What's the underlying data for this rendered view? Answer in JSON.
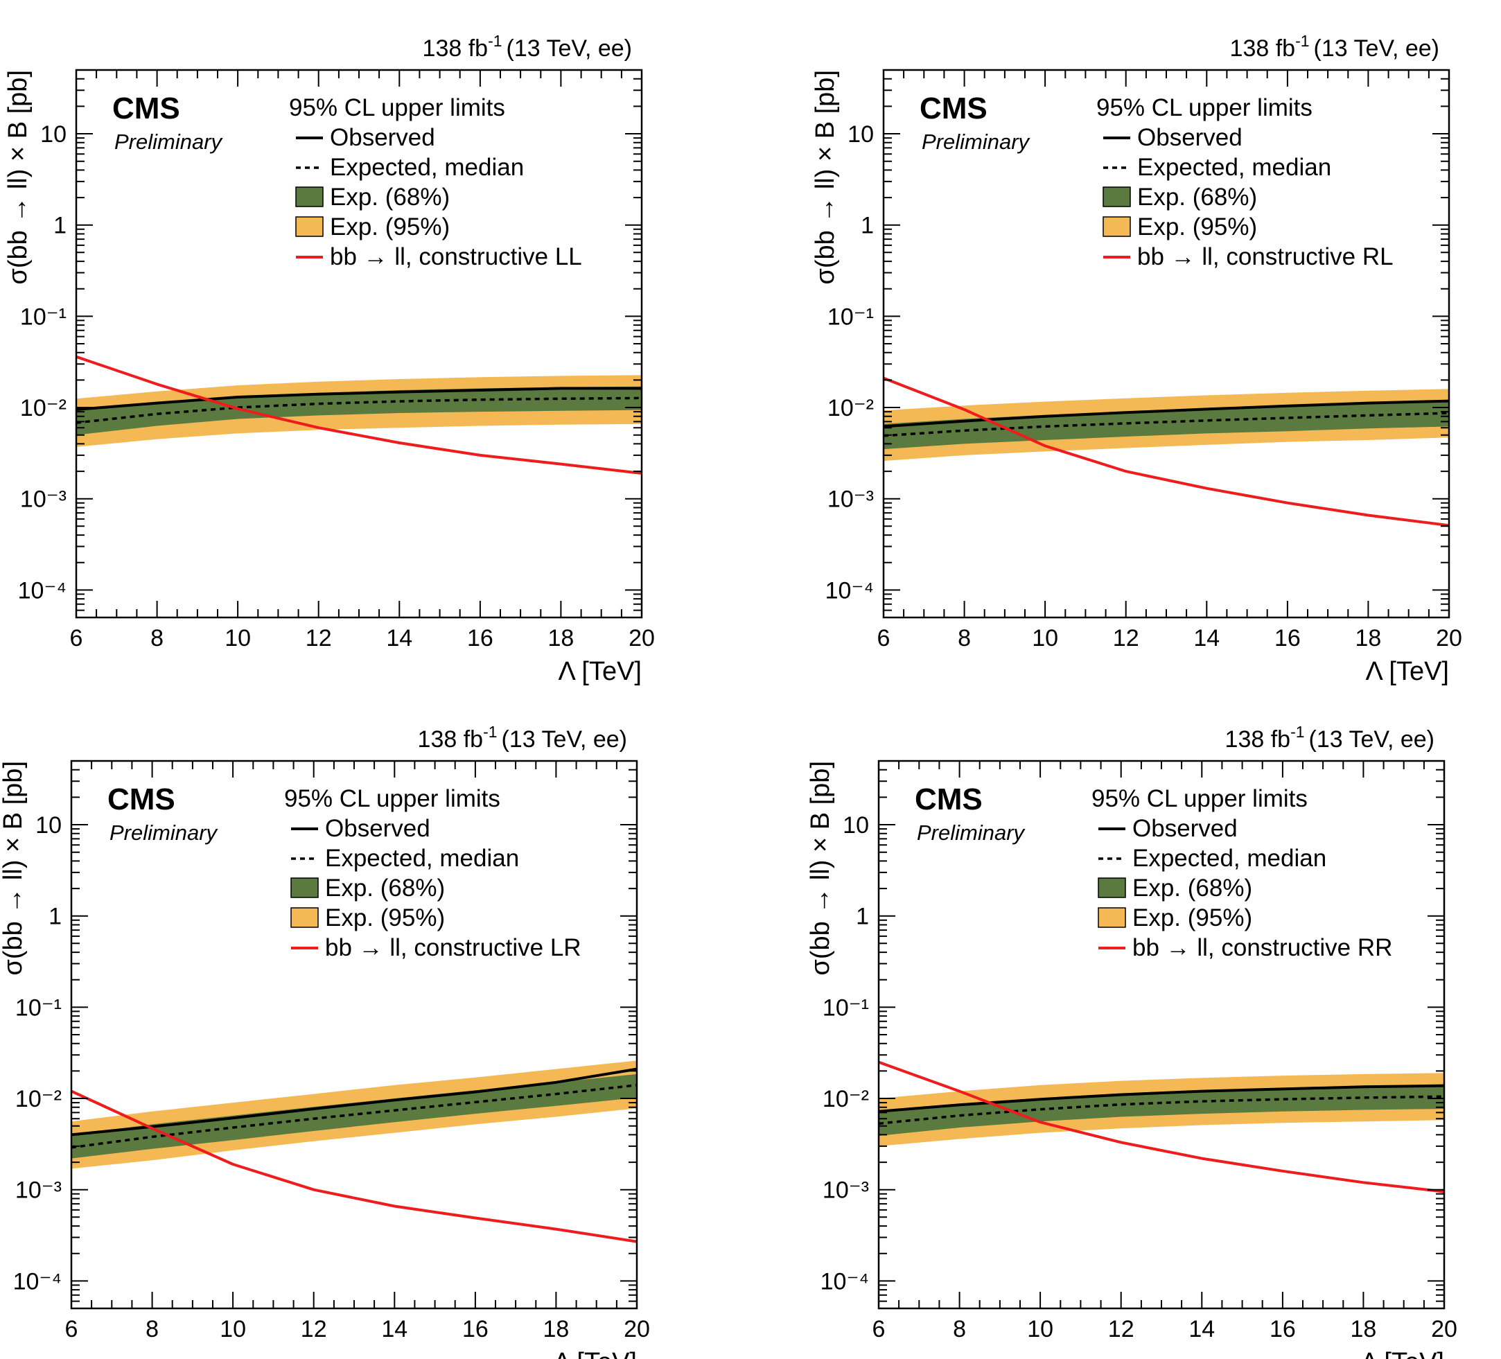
{
  "colors": {
    "band68": "#5b7a3f",
    "band95": "#f4b955",
    "theory": "#ee1c1c",
    "observed": "#000000",
    "frame": "#000000"
  },
  "chart_data": [
    {
      "type": "line",
      "panel": "top-left",
      "lumi_label": "138 fb",
      "lumi_sup": "-1",
      "lumi_suffix": "(13 TeV, ee)",
      "cms_label": "CMS",
      "preliminary_label": "Preliminary",
      "legend_title": "95% CL upper limits",
      "legend": [
        "Observed",
        "Expected, median",
        "Exp. (68%)",
        "Exp. (95%)",
        "bb → ll, constructive LL"
      ],
      "xlabel": "Λ [TeV]",
      "ylabel": "σ(bb → ll) × B [pb]",
      "xlim": [
        6,
        20
      ],
      "ylim": [
        5e-05,
        50
      ],
      "yscale": "log",
      "xticks": [
        "6",
        "8",
        "10",
        "12",
        "14",
        "16",
        "18",
        "20"
      ],
      "yticks": [
        "10⁻⁴",
        "10⁻³",
        "10⁻²",
        "10⁻¹",
        "1",
        "10"
      ],
      "x": [
        6,
        8,
        10,
        12,
        14,
        16,
        18,
        20
      ],
      "observed": [
        0.0095,
        0.0112,
        0.013,
        0.014,
        0.0148,
        0.0155,
        0.0162,
        0.0162
      ],
      "expected": [
        0.0068,
        0.0085,
        0.01,
        0.011,
        0.0117,
        0.0122,
        0.0125,
        0.0127
      ],
      "band68": [
        [
          0.005,
          0.0092
        ],
        [
          0.0063,
          0.0112
        ],
        [
          0.0075,
          0.0133
        ],
        [
          0.0082,
          0.0145
        ],
        [
          0.0087,
          0.0155
        ],
        [
          0.009,
          0.0162
        ],
        [
          0.0092,
          0.0167
        ],
        [
          0.0094,
          0.017
        ]
      ],
      "band95": [
        [
          0.0037,
          0.0125
        ],
        [
          0.0045,
          0.015
        ],
        [
          0.0052,
          0.0175
        ],
        [
          0.0057,
          0.0192
        ],
        [
          0.006,
          0.0205
        ],
        [
          0.0063,
          0.0215
        ],
        [
          0.0065,
          0.0222
        ],
        [
          0.0066,
          0.0227
        ]
      ],
      "theory": [
        0.036,
        0.018,
        0.0097,
        0.006,
        0.0041,
        0.003,
        0.0024,
        0.0019
      ]
    },
    {
      "type": "line",
      "panel": "top-right",
      "lumi_label": "138 fb",
      "lumi_sup": "-1",
      "lumi_suffix": "(13 TeV, ee)",
      "cms_label": "CMS",
      "preliminary_label": "Preliminary",
      "legend_title": "95% CL upper limits",
      "legend": [
        "Observed",
        "Expected, median",
        "Exp. (68%)",
        "Exp. (95%)",
        "bb → ll, constructive RL"
      ],
      "xlabel": "Λ [TeV]",
      "ylabel": "σ(bb → ll) × B [pb]",
      "xlim": [
        6,
        20
      ],
      "ylim": [
        5e-05,
        50
      ],
      "yscale": "log",
      "xticks": [
        "6",
        "8",
        "10",
        "12",
        "14",
        "16",
        "18",
        "20"
      ],
      "yticks": [
        "10⁻⁴",
        "10⁻³",
        "10⁻²",
        "10⁻¹",
        "1",
        "10"
      ],
      "x": [
        6,
        8,
        10,
        12,
        14,
        16,
        18,
        20
      ],
      "observed": [
        0.0062,
        0.0071,
        0.008,
        0.0088,
        0.0096,
        0.0104,
        0.0112,
        0.0118
      ],
      "expected": [
        0.0049,
        0.0056,
        0.0062,
        0.0067,
        0.0072,
        0.0077,
        0.0082,
        0.0087
      ],
      "band68": [
        [
          0.0035,
          0.0066
        ],
        [
          0.004,
          0.0075
        ],
        [
          0.0044,
          0.0083
        ],
        [
          0.0048,
          0.009
        ],
        [
          0.0052,
          0.0097
        ],
        [
          0.0055,
          0.0104
        ],
        [
          0.0059,
          0.011
        ],
        [
          0.0062,
          0.0116
        ]
      ],
      "band95": [
        [
          0.0026,
          0.0093
        ],
        [
          0.003,
          0.0105
        ],
        [
          0.0033,
          0.0116
        ],
        [
          0.0036,
          0.0126
        ],
        [
          0.0039,
          0.0136
        ],
        [
          0.0042,
          0.0145
        ],
        [
          0.0044,
          0.0153
        ],
        [
          0.0047,
          0.016
        ]
      ],
      "theory": [
        0.021,
        0.0095,
        0.0038,
        0.002,
        0.0013,
        0.0009,
        0.00066,
        0.00051
      ]
    },
    {
      "type": "line",
      "panel": "bottom-left",
      "lumi_label": "138 fb",
      "lumi_sup": "-1",
      "lumi_suffix": "(13 TeV, ee)",
      "cms_label": "CMS",
      "preliminary_label": "Preliminary",
      "legend_title": "95% CL upper limits",
      "legend": [
        "Observed",
        "Expected, median",
        "Exp. (68%)",
        "Exp. (95%)",
        "bb → ll, constructive LR"
      ],
      "xlabel": "Λ [TeV]",
      "ylabel": "σ(bb → ll) × B [pb]",
      "xlim": [
        6,
        20
      ],
      "ylim": [
        5e-05,
        50
      ],
      "yscale": "log",
      "xticks": [
        "6",
        "8",
        "10",
        "12",
        "14",
        "16",
        "18",
        "20"
      ],
      "yticks": [
        "10⁻⁴",
        "10⁻³",
        "10⁻²",
        "10⁻¹",
        "1",
        "10"
      ],
      "x": [
        6,
        8,
        10,
        12,
        14,
        16,
        18,
        20
      ],
      "observed": [
        0.004,
        0.0049,
        0.0061,
        0.0077,
        0.0096,
        0.0118,
        0.015,
        0.021
      ],
      "expected": [
        0.0029,
        0.0038,
        0.0048,
        0.006,
        0.0074,
        0.0091,
        0.0112,
        0.014
      ],
      "band68": [
        [
          0.0022,
          0.004
        ],
        [
          0.0028,
          0.0052
        ],
        [
          0.0035,
          0.0065
        ],
        [
          0.0044,
          0.0081
        ],
        [
          0.0055,
          0.01
        ],
        [
          0.0068,
          0.0123
        ],
        [
          0.0083,
          0.015
        ],
        [
          0.0102,
          0.0185
        ]
      ],
      "band95": [
        [
          0.0017,
          0.0056
        ],
        [
          0.0021,
          0.0072
        ],
        [
          0.0027,
          0.009
        ],
        [
          0.0034,
          0.0112
        ],
        [
          0.0042,
          0.014
        ],
        [
          0.0052,
          0.017
        ],
        [
          0.0063,
          0.021
        ],
        [
          0.0078,
          0.026
        ]
      ],
      "theory": [
        0.012,
        0.0047,
        0.0019,
        0.001,
        0.00066,
        0.00049,
        0.00037,
        0.00027
      ]
    },
    {
      "type": "line",
      "panel": "bottom-right",
      "lumi_label": "138 fb",
      "lumi_sup": "-1",
      "lumi_suffix": "(13 TeV, ee)",
      "cms_label": "CMS",
      "preliminary_label": "Preliminary",
      "legend_title": "95% CL upper limits",
      "legend": [
        "Observed",
        "Expected, median",
        "Exp. (68%)",
        "Exp. (95%)",
        "bb → ll, constructive RR"
      ],
      "xlabel": "Λ [TeV]",
      "ylabel": "σ(bb → ll) × B [pb]",
      "xlim": [
        6,
        20
      ],
      "ylim": [
        5e-05,
        50
      ],
      "yscale": "log",
      "xticks": [
        "6",
        "8",
        "10",
        "12",
        "14",
        "16",
        "18",
        "20"
      ],
      "yticks": [
        "10⁻⁴",
        "10⁻³",
        "10⁻²",
        "10⁻¹",
        "1",
        "10"
      ],
      "x": [
        6,
        8,
        10,
        12,
        14,
        16,
        18,
        20
      ],
      "observed": [
        0.0072,
        0.0085,
        0.0098,
        0.011,
        0.012,
        0.0127,
        0.0134,
        0.0138
      ],
      "expected": [
        0.0053,
        0.0065,
        0.0076,
        0.0086,
        0.0093,
        0.0098,
        0.0102,
        0.0105
      ],
      "band68": [
        [
          0.0039,
          0.0071
        ],
        [
          0.0048,
          0.0087
        ],
        [
          0.0056,
          0.0101
        ],
        [
          0.0063,
          0.0114
        ],
        [
          0.0068,
          0.0123
        ],
        [
          0.0072,
          0.013
        ],
        [
          0.0075,
          0.0135
        ],
        [
          0.0077,
          0.0139
        ]
      ],
      "band95": [
        [
          0.003,
          0.01
        ],
        [
          0.0036,
          0.012
        ],
        [
          0.0042,
          0.014
        ],
        [
          0.0047,
          0.0156
        ],
        [
          0.0051,
          0.0168
        ],
        [
          0.0054,
          0.0178
        ],
        [
          0.0056,
          0.0185
        ],
        [
          0.0058,
          0.019
        ]
      ],
      "theory": [
        0.025,
        0.012,
        0.0055,
        0.0033,
        0.0022,
        0.0016,
        0.0012,
        0.00095
      ]
    }
  ]
}
